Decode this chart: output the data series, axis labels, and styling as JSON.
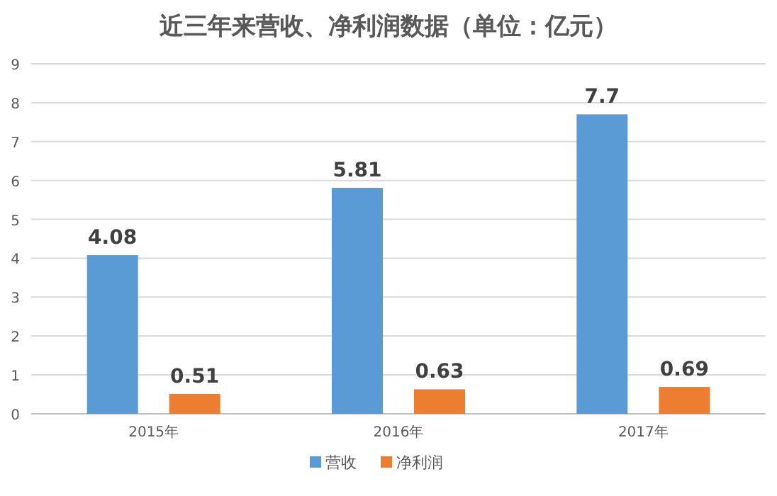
{
  "chart_data": {
    "type": "bar",
    "title": "近三年来营收、净利润数据（单位：亿元）",
    "categories": [
      "2015年",
      "2016年",
      "2017年"
    ],
    "series": [
      {
        "name": "营收",
        "color": "#5b9bd5",
        "values": [
          4.08,
          5.81,
          7.7
        ]
      },
      {
        "name": "净利润",
        "color": "#ed7d31",
        "values": [
          0.51,
          0.63,
          0.69
        ]
      }
    ],
    "ylim": [
      0,
      9
    ],
    "yticks": [
      0,
      1,
      2,
      3,
      4,
      5,
      6,
      7,
      8,
      9
    ],
    "grid": "y",
    "legend": "bottom",
    "data_labels": true
  }
}
